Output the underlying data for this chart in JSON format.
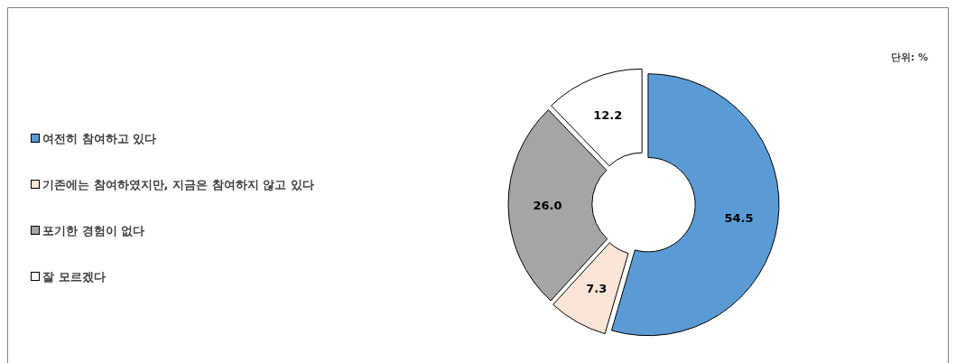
{
  "chart_data": {
    "type": "donut",
    "categories": [
      "여전히 참여하고 있다",
      "기존에는 참여하였지만, 지금은 참여하지 않고 있다",
      "포기한 경험이 없다",
      "잘 모르겠다"
    ],
    "values": [
      54.5,
      7.3,
      26.0,
      12.2
    ],
    "colors": [
      "#5b9bd5",
      "#fbe5d6",
      "#a5a5a5",
      "#ffffff"
    ],
    "value_labels": [
      "54.5",
      "7.3",
      "26.0",
      "12.2"
    ],
    "legend": "left",
    "annotations": [
      "단위: %"
    ]
  }
}
